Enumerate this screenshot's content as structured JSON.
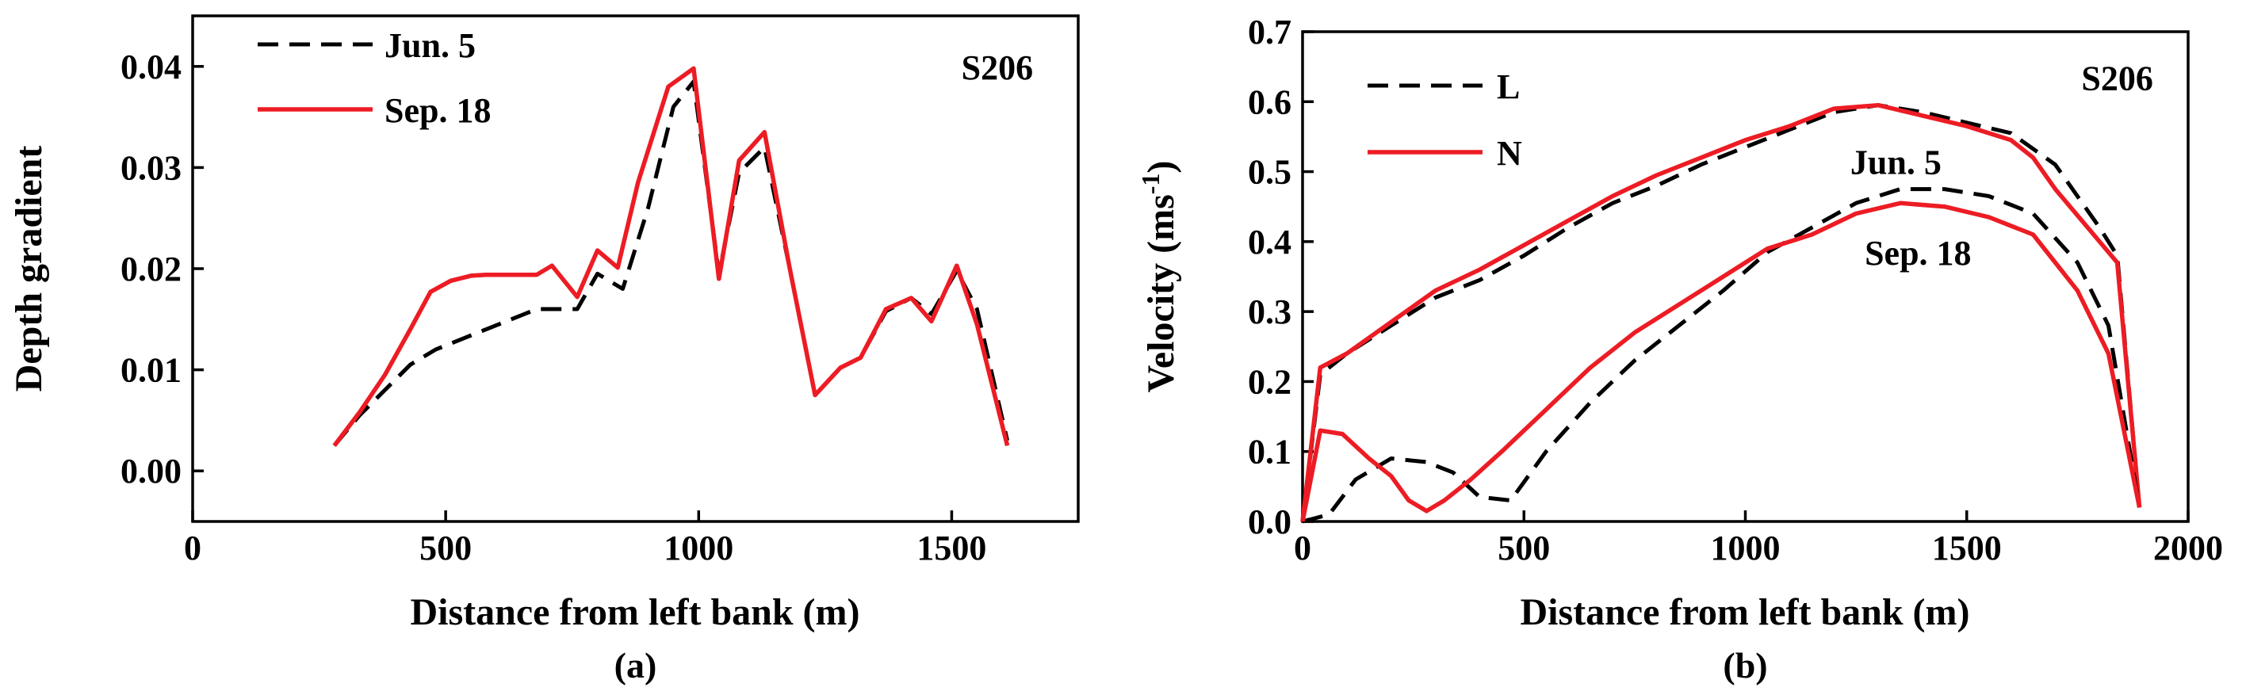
{
  "colors": {
    "dashed": "#000000",
    "solid": "#ed1c24"
  },
  "chart_data": [
    {
      "panel": "(a)",
      "type": "line",
      "title": "",
      "xlabel": "Distance from left bank (m)",
      "ylabel": "Depth gradient",
      "xlim": [
        0,
        1750
      ],
      "ylim": [
        -0.005,
        0.045
      ],
      "xticks": [
        0,
        500,
        1000,
        1500
      ],
      "xtick_labels": [
        "0",
        "500",
        "1000",
        "1500"
      ],
      "yticks": [
        0.0,
        0.01,
        0.02,
        0.03,
        0.04
      ],
      "ytick_labels": [
        "0.00",
        "0.01",
        "0.02",
        "0.03",
        "0.04"
      ],
      "legend_position": "top-left",
      "annotations": [
        {
          "text": "S206",
          "x": 1590,
          "y": 0.04
        }
      ],
      "series": [
        {
          "name": "Jun. 5",
          "style": "dashed",
          "x": [
            280,
            330,
            380,
            430,
            480,
            530,
            580,
            630,
            680,
            730,
            760,
            800,
            850,
            900,
            950,
            990,
            1040,
            1080,
            1130,
            1180,
            1230,
            1280,
            1320,
            1370,
            1420,
            1460,
            1510,
            1550,
            1610
          ],
          "y": [
            0.0025,
            0.0055,
            0.008,
            0.0105,
            0.012,
            0.013,
            0.014,
            0.015,
            0.016,
            0.016,
            0.016,
            0.0195,
            0.018,
            0.026,
            0.036,
            0.0385,
            0.0195,
            0.0295,
            0.032,
            0.02,
            0.0075,
            0.0102,
            0.0112,
            0.0158,
            0.0171,
            0.0155,
            0.0198,
            0.016,
            0.003
          ]
        },
        {
          "name": "Sep. 18",
          "style": "solid",
          "x": [
            280,
            330,
            380,
            430,
            470,
            510,
            550,
            580,
            630,
            680,
            710,
            760,
            800,
            840,
            880,
            940,
            990,
            1040,
            1080,
            1130,
            1180,
            1230,
            1280,
            1320,
            1370,
            1420,
            1460,
            1510,
            1550,
            1610
          ],
          "y": [
            0.0025,
            0.0058,
            0.0095,
            0.014,
            0.0177,
            0.0188,
            0.0193,
            0.0194,
            0.0194,
            0.0194,
            0.0203,
            0.0172,
            0.0218,
            0.0201,
            0.0285,
            0.038,
            0.0398,
            0.019,
            0.0307,
            0.0335,
            0.02,
            0.0075,
            0.0102,
            0.0112,
            0.016,
            0.0171,
            0.0148,
            0.0203,
            0.0145,
            0.0025
          ]
        }
      ]
    },
    {
      "panel": "(b)",
      "type": "line",
      "title": "",
      "xlabel": "Distance from left bank (m)",
      "ylabel": "Velocity (ms",
      "ylabel_sup": "-1",
      "ylabel_close": ")",
      "xlim": [
        0,
        2000
      ],
      "ylim": [
        0.0,
        0.7
      ],
      "xticks": [
        0,
        500,
        1000,
        1500,
        2000
      ],
      "xtick_labels": [
        "0",
        "500",
        "1000",
        "1500",
        "2000"
      ],
      "yticks": [
        0.0,
        0.1,
        0.2,
        0.3,
        0.4,
        0.5,
        0.6,
        0.7
      ],
      "ytick_labels": [
        "0.0",
        "0.1",
        "0.2",
        "0.3",
        "0.4",
        "0.5",
        "0.6",
        "0.7"
      ],
      "legend_position": "top-left",
      "annotations": [
        {
          "text": "S206",
          "x": 1840,
          "y": 0.635
        },
        {
          "text": "Jun. 5",
          "x": 1340,
          "y": 0.515
        },
        {
          "text": "Sep. 18",
          "x": 1390,
          "y": 0.385
        }
      ],
      "series": [
        {
          "name": "L",
          "style": "dashed",
          "group": "Jun. 5",
          "x": [
            0,
            40,
            100,
            200,
            300,
            400,
            500,
            600,
            700,
            800,
            900,
            1000,
            1100,
            1200,
            1300,
            1400,
            1500,
            1600,
            1700,
            1800,
            1840,
            1890
          ],
          "y": [
            0.0,
            0.21,
            0.24,
            0.28,
            0.32,
            0.345,
            0.38,
            0.42,
            0.455,
            0.48,
            0.51,
            0.535,
            0.56,
            0.585,
            0.595,
            0.585,
            0.57,
            0.555,
            0.51,
            0.42,
            0.38,
            0.02
          ]
        },
        {
          "name": "N",
          "style": "solid",
          "group": "Jun. 5",
          "x": [
            0,
            40,
            100,
            200,
            300,
            400,
            500,
            600,
            700,
            800,
            900,
            1000,
            1100,
            1200,
            1300,
            1400,
            1500,
            1600,
            1650,
            1700,
            1800,
            1840,
            1890
          ],
          "y": [
            0.0,
            0.22,
            0.24,
            0.285,
            0.33,
            0.36,
            0.395,
            0.43,
            0.465,
            0.495,
            0.52,
            0.545,
            0.565,
            0.59,
            0.595,
            0.58,
            0.565,
            0.545,
            0.52,
            0.475,
            0.4,
            0.37,
            0.02
          ]
        },
        {
          "name": "L",
          "style": "dashed",
          "group": "Sep. 18",
          "x": [
            0,
            60,
            120,
            200,
            280,
            340,
            400,
            470,
            550,
            650,
            750,
            850,
            950,
            1050,
            1150,
            1250,
            1350,
            1450,
            1550,
            1650,
            1750,
            1820,
            1890
          ],
          "y": [
            0.0,
            0.01,
            0.06,
            0.09,
            0.085,
            0.07,
            0.035,
            0.03,
            0.1,
            0.17,
            0.23,
            0.28,
            0.33,
            0.385,
            0.42,
            0.455,
            0.475,
            0.475,
            0.465,
            0.44,
            0.37,
            0.28,
            0.02
          ]
        },
        {
          "name": "N",
          "style": "solid",
          "group": "Sep. 18",
          "x": [
            0,
            40,
            90,
            150,
            200,
            240,
            280,
            320,
            380,
            450,
            550,
            650,
            750,
            850,
            950,
            1050,
            1150,
            1250,
            1350,
            1450,
            1550,
            1650,
            1750,
            1820,
            1890
          ],
          "y": [
            0.0,
            0.13,
            0.125,
            0.09,
            0.065,
            0.03,
            0.015,
            0.03,
            0.06,
            0.1,
            0.16,
            0.22,
            0.27,
            0.31,
            0.35,
            0.39,
            0.41,
            0.44,
            0.455,
            0.45,
            0.435,
            0.41,
            0.33,
            0.24,
            0.02
          ]
        }
      ]
    }
  ]
}
